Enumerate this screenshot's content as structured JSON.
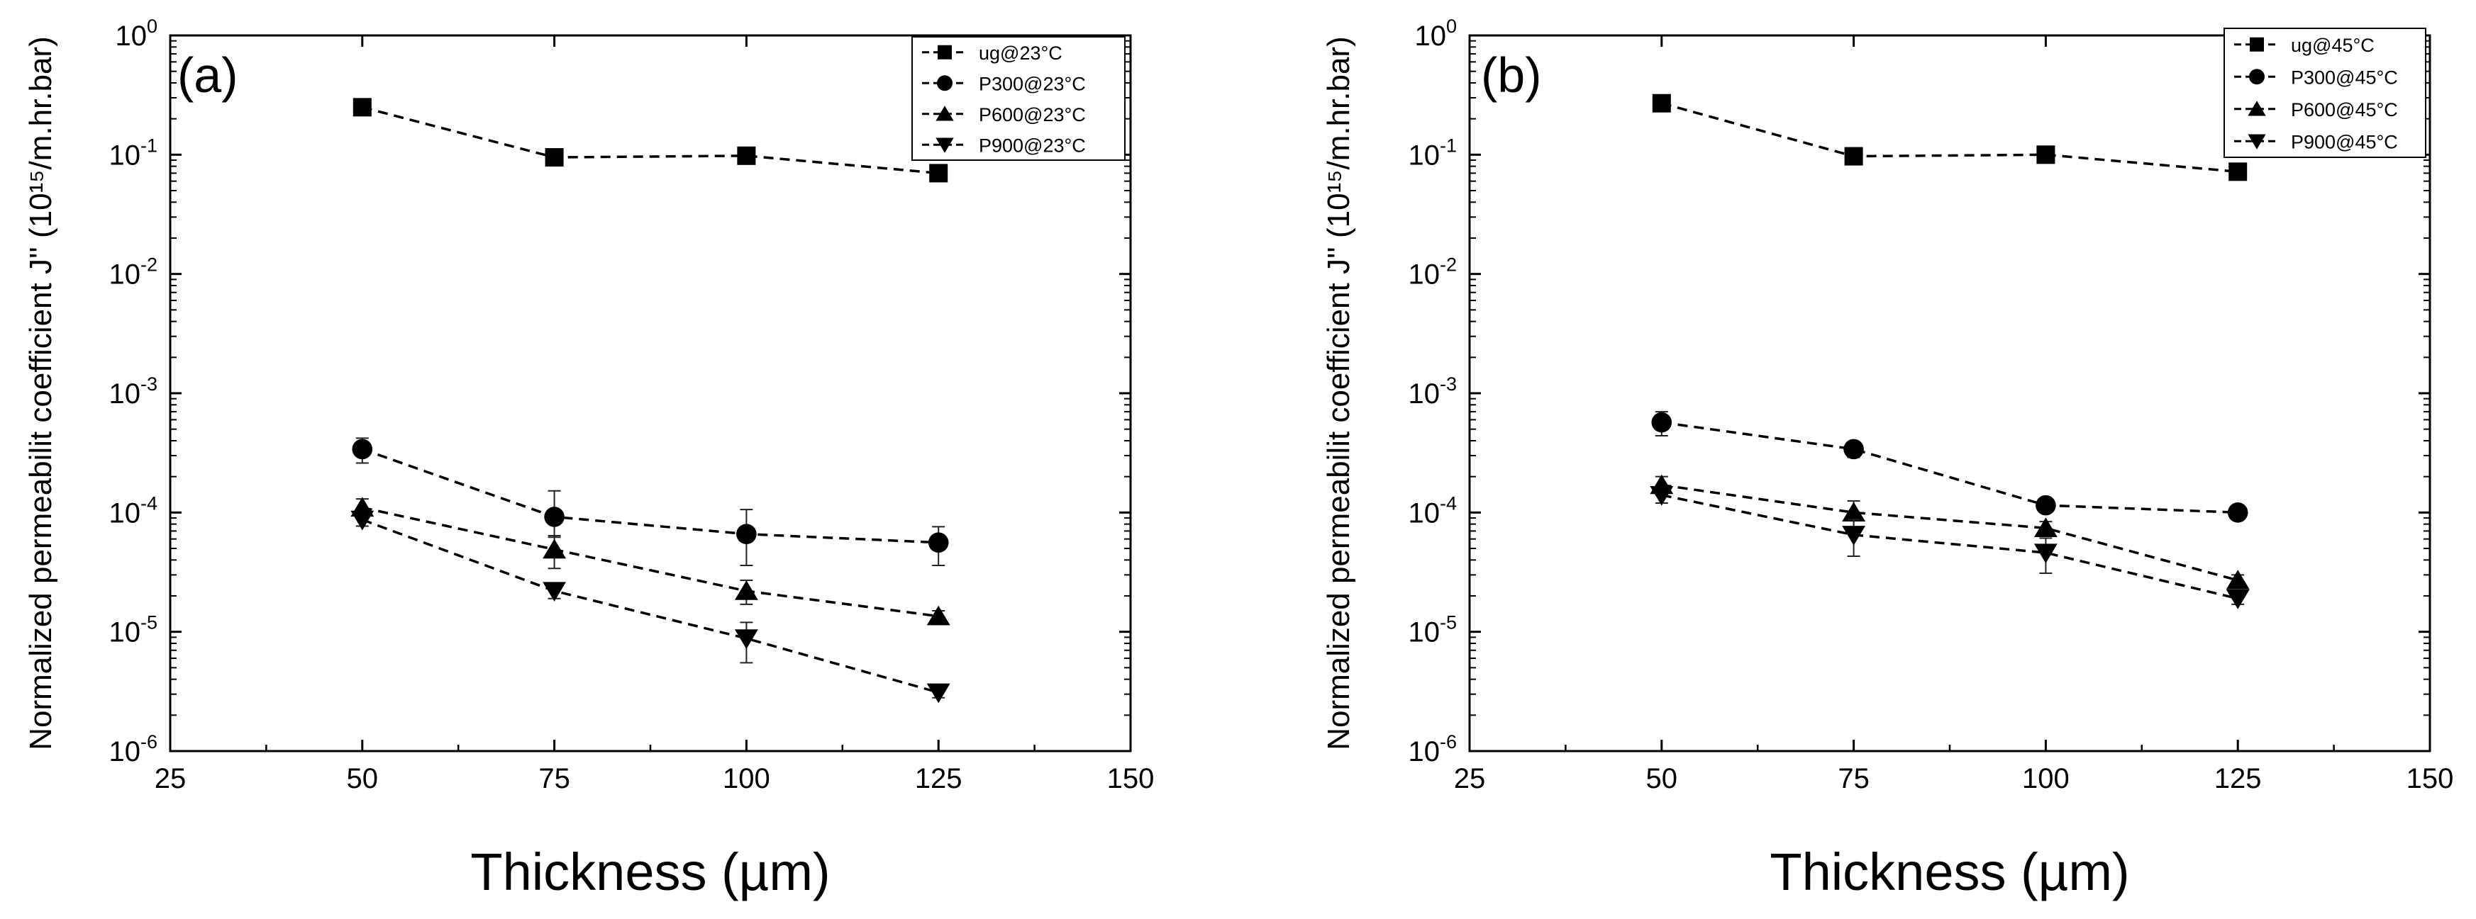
{
  "figure": {
    "panels": 2
  },
  "chart_data": [
    {
      "type": "line",
      "panel_label": "(a)",
      "xlabel": "Thickness (µm)",
      "ylabel": "Normalized permeabilit coefficient J'' (10¹⁵/m.hr.bar)",
      "y_scale": "log",
      "xlim": [
        25,
        150
      ],
      "ylim": [
        1e-06,
        1
      ],
      "xticks": [
        25,
        50,
        75,
        100,
        125,
        150
      ],
      "ytick_labels": [
        {
          "base": "10",
          "exp": "-6",
          "value": 1e-06
        },
        {
          "base": "10",
          "exp": "-5",
          "value": 1e-05
        },
        {
          "base": "10",
          "exp": "-4",
          "value": 0.0001
        },
        {
          "base": "10",
          "exp": "-3",
          "value": 0.001
        },
        {
          "base": "10",
          "exp": "-2",
          "value": 0.01
        },
        {
          "base": "10",
          "exp": "-1",
          "value": 0.1
        },
        {
          "base": "10",
          "exp": "0",
          "value": 1
        }
      ],
      "legend_position": "top-right",
      "grid": false,
      "x": [
        50,
        75,
        100,
        125
      ],
      "series": [
        {
          "name": "ug@23°C",
          "marker": "square",
          "values": [
            0.25,
            0.095,
            0.098,
            0.07
          ],
          "errors": [
            [
              0.02,
              0.02
            ],
            [
              0.008,
              0.008
            ],
            [
              0.008,
              0.008
            ],
            [
              0.006,
              0.006
            ]
          ]
        },
        {
          "name": "P300@23°C",
          "marker": "circle",
          "values": [
            0.00034,
            9.2e-05,
            6.6e-05,
            5.6e-05
          ],
          "errors": [
            [
              8e-05,
              8e-05
            ],
            [
              3e-05,
              6e-05
            ],
            [
              3e-05,
              4e-05
            ],
            [
              2e-05,
              2e-05
            ]
          ]
        },
        {
          "name": "P600@23°C",
          "marker": "triangle-up",
          "values": [
            0.00011,
            4.9e-05,
            2.2e-05,
            1.35e-05
          ],
          "errors": [
            [
              2e-05,
              2e-05
            ],
            [
              1.5e-05,
              1.5e-05
            ],
            [
              5e-06,
              5e-06
            ],
            [
              1.5e-06,
              1.5e-06
            ]
          ]
        },
        {
          "name": "P900@23°C",
          "marker": "triangle-down",
          "values": [
            8.7e-05,
            2.2e-05,
            8.8e-06,
            3.1e-06
          ],
          "errors": [
            [
              1e-05,
              1e-05
            ],
            [
              3e-06,
              3e-06
            ],
            [
              3.3e-06,
              3.2e-06
            ],
            [
              3e-07,
              3e-07
            ]
          ]
        }
      ]
    },
    {
      "type": "line",
      "panel_label": "(b)",
      "xlabel": "Thickness (µm)",
      "ylabel": "Normalized permeabilit coefficient J'' (10¹⁵/m.hr.bar)",
      "y_scale": "log",
      "xlim": [
        25,
        150
      ],
      "ylim": [
        1e-06,
        1
      ],
      "xticks": [
        25,
        50,
        75,
        100,
        125,
        150
      ],
      "ytick_labels": [
        {
          "base": "10",
          "exp": "-6",
          "value": 1e-06
        },
        {
          "base": "10",
          "exp": "-5",
          "value": 1e-05
        },
        {
          "base": "10",
          "exp": "-4",
          "value": 0.0001
        },
        {
          "base": "10",
          "exp": "-3",
          "value": 0.001
        },
        {
          "base": "10",
          "exp": "-2",
          "value": 0.01
        },
        {
          "base": "10",
          "exp": "-1",
          "value": 0.1
        },
        {
          "base": "10",
          "exp": "0",
          "value": 1
        }
      ],
      "legend_position": "top-right",
      "grid": false,
      "x": [
        50,
        75,
        100,
        125
      ],
      "series": [
        {
          "name": "ug@45°C",
          "marker": "square",
          "values": [
            0.27,
            0.097,
            0.1,
            0.072
          ],
          "errors": [
            [
              0.02,
              0.02
            ],
            [
              0.008,
              0.008
            ],
            [
              0.008,
              0.008
            ],
            [
              0.006,
              0.006
            ]
          ]
        },
        {
          "name": "P300@45°C",
          "marker": "circle",
          "values": [
            0.00057,
            0.00034,
            0.000115,
            0.0001
          ],
          "errors": [
            [
              0.00013,
              0.00013
            ],
            [
              5e-05,
              5e-05
            ],
            [
              1e-05,
              1e-05
            ],
            [
              8e-06,
              8e-06
            ]
          ]
        },
        {
          "name": "P600@45°C",
          "marker": "triangle-up",
          "values": [
            0.00017,
            0.0001,
            7.4e-05,
            2.7e-05
          ],
          "errors": [
            [
              3e-05,
              3e-05
            ],
            [
              2.5e-05,
              2.5e-05
            ],
            [
              1e-05,
              1e-05
            ],
            [
              3e-06,
              3e-06
            ]
          ]
        },
        {
          "name": "P900@45°C",
          "marker": "triangle-down",
          "values": [
            0.00014,
            6.5e-05,
            4.6e-05,
            1.9e-05
          ],
          "errors": [
            [
              2e-05,
              2e-05
            ],
            [
              2.2e-05,
              2.2e-05
            ],
            [
              1.5e-05,
              1.5e-05
            ],
            [
              2e-06,
              2e-06
            ]
          ]
        }
      ]
    }
  ]
}
